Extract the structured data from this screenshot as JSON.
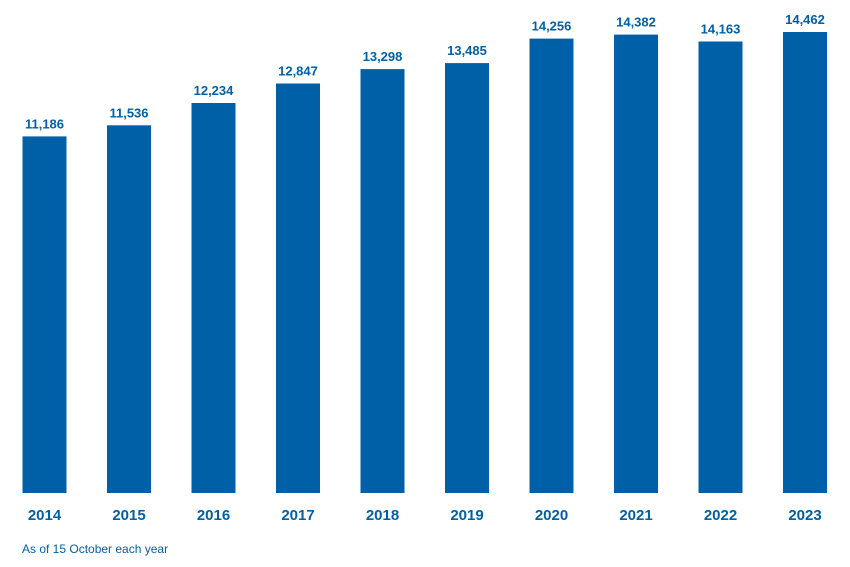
{
  "chart_data": {
    "type": "bar",
    "categories": [
      "2014",
      "2015",
      "2016",
      "2017",
      "2018",
      "2019",
      "2020",
      "2021",
      "2022",
      "2023"
    ],
    "values": [
      11186,
      11536,
      12234,
      12847,
      13298,
      13485,
      14256,
      14382,
      14163,
      14462
    ],
    "value_labels": [
      "11,186",
      "11,536",
      "12,234",
      "12,847",
      "13,298",
      "13,485",
      "14,256",
      "14,382",
      "14,163",
      "14,462"
    ],
    "ylim": [
      0,
      14462
    ],
    "grid": false,
    "legend": "none",
    "bar_color": "#0060a7",
    "text_color": "#0060a7"
  },
  "footnote": "As of 15 October each year"
}
